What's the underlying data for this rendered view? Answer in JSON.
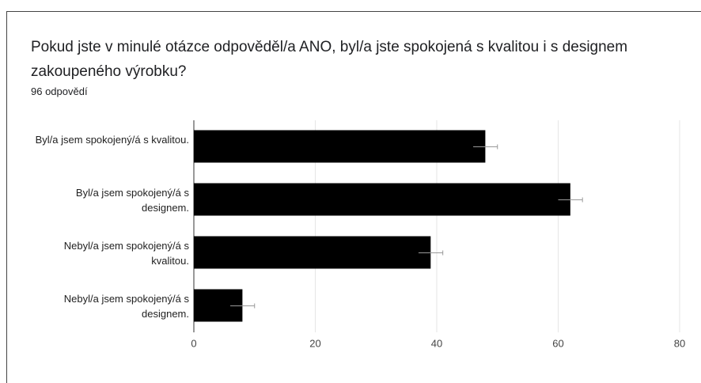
{
  "chart_data": {
    "type": "bar",
    "orientation": "horizontal",
    "title": "Pokud jste v minulé otázce odpověděl/a ANO, byl/a jste spokojená s kvalitou i s designem zakoupeného výrobku?",
    "subtitle": "96 odpovědí",
    "categories": [
      "Byl/a jsem spokojený/á s kvalitou.",
      "Byl/a jsem spokojený/á s designem.",
      "Nebyl/a jsem spokojený/á s kvalitou.",
      "Nebyl/a jsem spokojený/á s designem."
    ],
    "values": [
      48,
      62,
      39,
      8
    ],
    "errors": [
      2,
      2,
      2,
      2
    ],
    "color": "#000000",
    "xlim": [
      0,
      80
    ],
    "xticks": [
      0,
      20,
      40,
      60,
      80
    ],
    "grid": true
  }
}
